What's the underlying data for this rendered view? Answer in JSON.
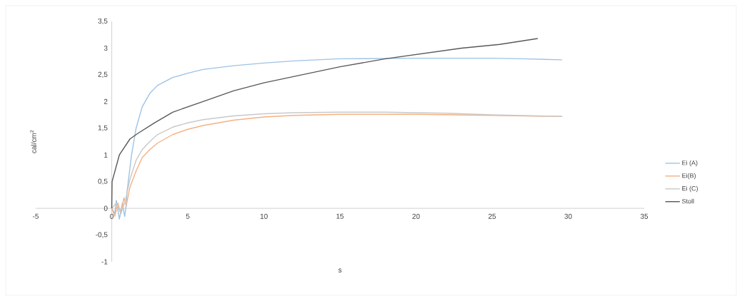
{
  "chart_data": {
    "type": "line",
    "xlabel": "s",
    "ylabel": "cal/cm$^{2}$",
    "xlim": [
      -5,
      35
    ],
    "ylim": [
      -1,
      3.5
    ],
    "xticks": [
      -5,
      0,
      5,
      10,
      15,
      20,
      25,
      30,
      35
    ],
    "yticks": [
      {
        "value": -1,
        "label": "-1"
      },
      {
        "value": -0.5,
        "label": "-0,5"
      },
      {
        "value": 0,
        "label": "0"
      },
      {
        "value": 0.5,
        "label": "0,5"
      },
      {
        "value": 1,
        "label": "1"
      },
      {
        "value": 1.5,
        "label": "1,5"
      },
      {
        "value": 2,
        "label": "2"
      },
      {
        "value": 2.5,
        "label": "2,5"
      },
      {
        "value": 3,
        "label": "3"
      },
      {
        "value": 3.5,
        "label": "3,5"
      }
    ],
    "legend": "right",
    "grid": false,
    "marker": "none",
    "series": [
      {
        "name": "Ei (A)",
        "color": "#9dc3e6",
        "x": [
          0,
          0.2,
          0.3,
          0.5,
          0.7,
          0.85,
          0.95,
          1.0,
          1.3,
          1.6,
          2.0,
          2.5,
          3,
          4,
          5,
          6,
          8,
          10,
          12,
          15,
          20,
          25,
          27,
          29.6
        ],
        "values": [
          0,
          -0.1,
          0.15,
          -0.2,
          0.1,
          -0.15,
          0.05,
          0.3,
          1.0,
          1.5,
          1.9,
          2.15,
          2.3,
          2.45,
          2.53,
          2.6,
          2.67,
          2.72,
          2.76,
          2.8,
          2.81,
          2.81,
          2.8,
          2.78
        ]
      },
      {
        "name": "Ei(B)",
        "color": "#f4b183",
        "x": [
          0,
          0.2,
          0.4,
          0.6,
          0.8,
          0.95,
          1.2,
          1.6,
          2.0,
          2.5,
          3,
          4,
          5,
          6,
          8,
          10,
          12,
          15,
          20,
          25,
          29.6
        ],
        "values": [
          0,
          -0.15,
          0.1,
          -0.1,
          0.2,
          0.05,
          0.4,
          0.7,
          0.95,
          1.1,
          1.22,
          1.38,
          1.48,
          1.55,
          1.65,
          1.71,
          1.74,
          1.76,
          1.76,
          1.74,
          1.72
        ]
      },
      {
        "name": "Ei (C)",
        "color": "#c9c9c9",
        "x": [
          0,
          0.3,
          0.6,
          0.9,
          1.2,
          1.6,
          2.0,
          2.5,
          3,
          4,
          5,
          6,
          8,
          10,
          12,
          15,
          18,
          22,
          25,
          29.6
        ],
        "values": [
          0,
          0.1,
          -0.1,
          0.15,
          0.55,
          0.9,
          1.1,
          1.25,
          1.38,
          1.52,
          1.6,
          1.66,
          1.73,
          1.77,
          1.79,
          1.8,
          1.8,
          1.78,
          1.75,
          1.72
        ]
      },
      {
        "name": "Stoll",
        "color": "#595959",
        "x": [
          0,
          0.02,
          0.5,
          1.2,
          1.7,
          2.8,
          4,
          6,
          8,
          10,
          12.5,
          15,
          18,
          20.5,
          23,
          25.5,
          28
        ],
        "values": [
          0,
          0.5,
          1.0,
          1.3,
          1.4,
          1.6,
          1.8,
          2.0,
          2.2,
          2.35,
          2.5,
          2.65,
          2.8,
          2.9,
          3.0,
          3.07,
          3.18
        ]
      }
    ]
  }
}
